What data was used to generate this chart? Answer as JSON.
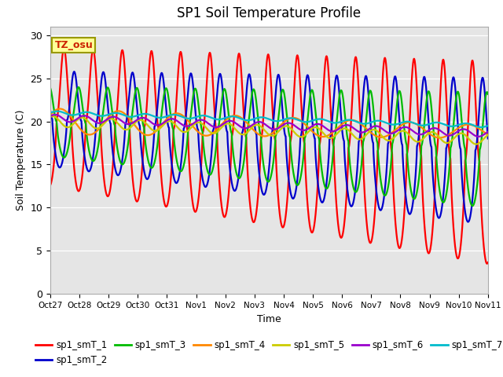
{
  "title": "SP1 Soil Temperature Profile",
  "xlabel": "Time",
  "ylabel": "Soil Temperature (C)",
  "ylim": [
    0,
    31
  ],
  "tz_label": "TZ_osu",
  "series_colors": {
    "sp1_smT_1": "#ff0000",
    "sp1_smT_2": "#0000cc",
    "sp1_smT_3": "#00bb00",
    "sp1_smT_4": "#ff8800",
    "sp1_smT_5": "#cccc00",
    "sp1_smT_6": "#9900cc",
    "sp1_smT_7": "#00bbcc"
  },
  "series_names": [
    "sp1_smT_1",
    "sp1_smT_2",
    "sp1_smT_3",
    "sp1_smT_4",
    "sp1_smT_5",
    "sp1_smT_6",
    "sp1_smT_7"
  ],
  "tick_labels": [
    "Oct 27",
    "Oct 28",
    "Oct 29",
    "Oct 30",
    "Oct 31",
    "Nov 1",
    "Nov 2",
    "Nov 3",
    "Nov 4",
    "Nov 5",
    "Nov 6",
    "Nov 7",
    "Nov 8",
    "Nov 9",
    "Nov 10",
    "Nov 11"
  ],
  "yticks": [
    0,
    5,
    10,
    15,
    20,
    25,
    30
  ],
  "background_color": "#e5e5e5",
  "legend_fontsize": 8.5,
  "title_fontsize": 12,
  "linewidth": 1.6
}
